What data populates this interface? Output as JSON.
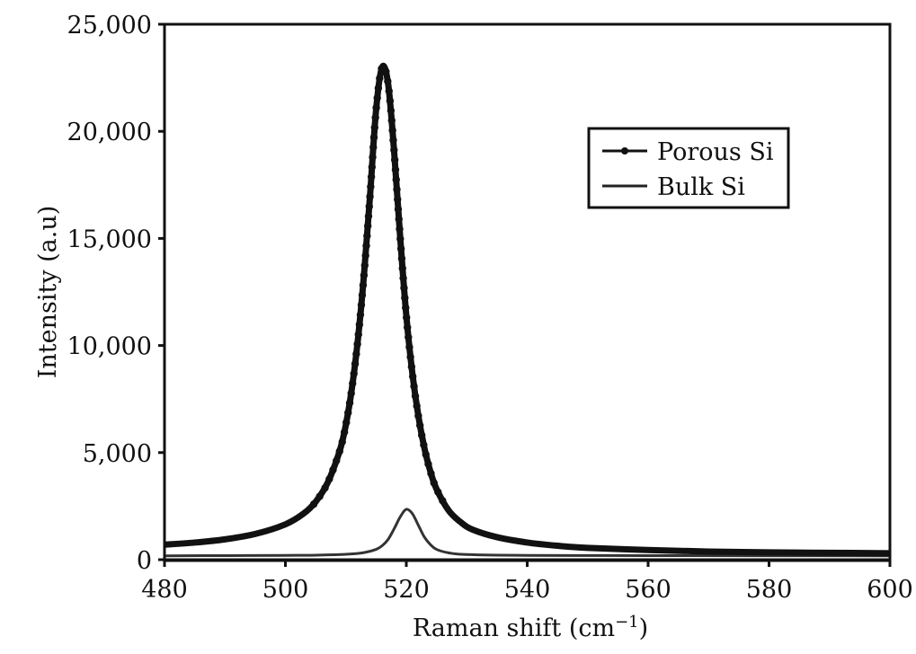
{
  "chart_data": {
    "type": "line",
    "title": "",
    "xlabel": "Raman shift (cm⁻¹)",
    "ylabel": "Intensity (a.u)",
    "xlim": [
      480,
      600
    ],
    "ylim": [
      0,
      25000
    ],
    "xticks": [
      480,
      500,
      520,
      540,
      560,
      580,
      600
    ],
    "xtick_labels": [
      "480",
      "500",
      "520",
      "540",
      "560",
      "580",
      "600"
    ],
    "yticks": [
      0,
      5000,
      10000,
      15000,
      20000,
      25000
    ],
    "ytick_labels": [
      "0",
      "5,000",
      "10,000",
      "15,000",
      "20,000",
      "25,000"
    ],
    "grid": false,
    "legend_position": "upper right",
    "legend": [
      "Porous Si",
      "Bulk Si"
    ],
    "series": [
      {
        "name": "Porous Si",
        "marker": "circle",
        "color": "#111111",
        "x": [
          480,
          485,
          490,
          495,
          500,
          503,
          505,
          507,
          509,
          510,
          511,
          512,
          513,
          514,
          515,
          516,
          517,
          518,
          519,
          520,
          521,
          522,
          523,
          524,
          525,
          527,
          529,
          531,
          535,
          540,
          545,
          550,
          560,
          570,
          580,
          590,
          600
        ],
        "values": [
          700,
          800,
          950,
          1200,
          1650,
          2150,
          2700,
          3600,
          5100,
          6300,
          8000,
          10300,
          13300,
          17000,
          21000,
          23000,
          22200,
          19000,
          15000,
          11400,
          8700,
          6700,
          5200,
          4100,
          3300,
          2300,
          1750,
          1400,
          1050,
          800,
          650,
          550,
          450,
          380,
          340,
          320,
          300
        ]
      },
      {
        "name": "Bulk Si",
        "marker": "none",
        "color": "#333333",
        "x": [
          480,
          490,
          500,
          505,
          510,
          513,
          515,
          516,
          517,
          518,
          519,
          520,
          521,
          522,
          523,
          524,
          525,
          527,
          530,
          540,
          560,
          580,
          600
        ],
        "values": [
          180,
          190,
          200,
          210,
          250,
          330,
          480,
          650,
          950,
          1450,
          2000,
          2350,
          2150,
          1600,
          1050,
          700,
          480,
          320,
          240,
          200,
          190,
          185,
          180
        ]
      }
    ]
  },
  "axes": {
    "x_title_main": "Raman shift (cm",
    "x_title_sup": "−1",
    "x_title_close": ")",
    "y_title": "Intensity (a.u)"
  },
  "legend": {
    "items": [
      {
        "label": "Porous Si"
      },
      {
        "label": "Bulk Si"
      }
    ]
  }
}
